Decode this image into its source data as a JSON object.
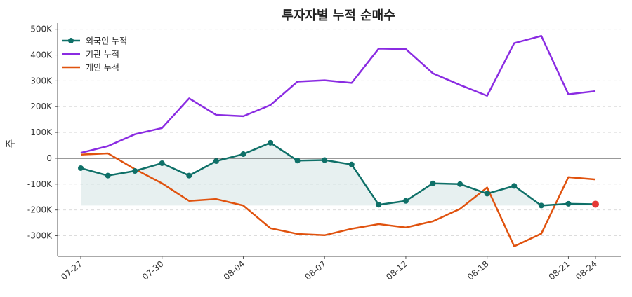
{
  "chart_data": {
    "type": "line",
    "title": "투자자별 누적 순매수",
    "ylabel": "주",
    "xlabel": "",
    "ylim": [
      -380000,
      510000
    ],
    "yticks": [
      -300000,
      -200000,
      -100000,
      0,
      100000,
      200000,
      300000,
      400000,
      500000
    ],
    "ytick_labels": [
      "-300K",
      "-200K",
      "-100K",
      "0",
      "100K",
      "200K",
      "300K",
      "400K",
      "500K"
    ],
    "x": [
      "07-27",
      "07-28",
      "07-29",
      "07-30",
      "07-31",
      "08-01",
      "08-04",
      "08-05",
      "08-06",
      "08-07",
      "08-08",
      "08-11",
      "08-12",
      "08-13",
      "08-14",
      "08-18",
      "08-19",
      "08-20",
      "08-21",
      "08-24"
    ],
    "xticks": [
      "07-27",
      "07-30",
      "08-04",
      "08-07",
      "08-12",
      "08-18",
      "08-21",
      "08-24"
    ],
    "grid": "y-dashed",
    "legend_position": "top-left",
    "series": [
      {
        "name": "외국인 누적",
        "color": "#0f7068",
        "marker": true,
        "fill": true,
        "values": [
          -38000,
          -67000,
          -49000,
          -19000,
          -67000,
          -11000,
          16000,
          60000,
          -9000,
          -7000,
          -24000,
          -180000,
          -165000,
          -97000,
          -100000,
          -137000,
          -107000,
          -183000,
          -176000,
          -178000
        ]
      },
      {
        "name": "기관 누적",
        "color": "#8a2be2",
        "marker": false,
        "fill": false,
        "values": [
          21000,
          47000,
          93000,
          117000,
          232000,
          168000,
          163000,
          206000,
          297000,
          302000,
          292000,
          425000,
          423000,
          329000,
          284000,
          242000,
          446000,
          474000,
          248000,
          260000
        ]
      },
      {
        "name": "개인 누적",
        "color": "#e0520e",
        "marker": false,
        "fill": false,
        "values": [
          14000,
          19000,
          -42000,
          -97000,
          -165000,
          -158000,
          -183000,
          -271000,
          -293000,
          -298000,
          -273000,
          -255000,
          -268000,
          -244000,
          -196000,
          -113000,
          -341000,
          -292000,
          -73000,
          -82000
        ]
      }
    ],
    "last_point_color": "#e53935"
  }
}
